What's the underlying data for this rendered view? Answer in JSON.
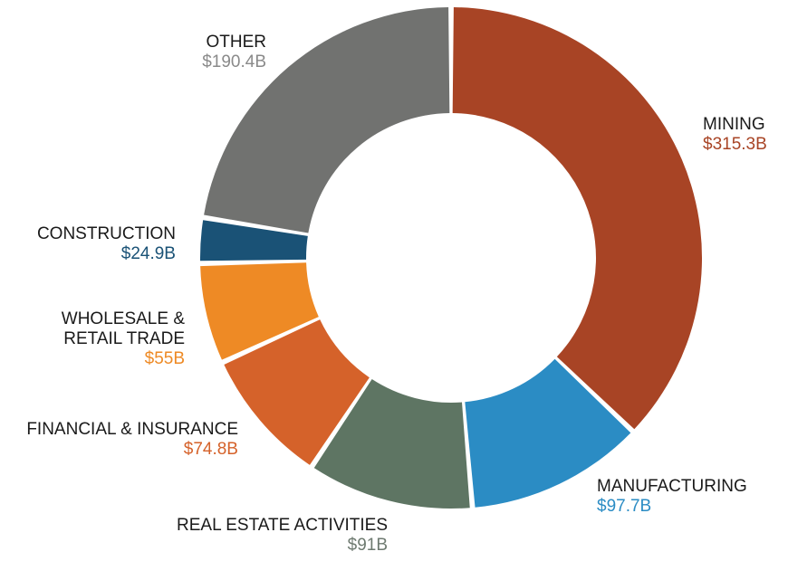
{
  "chart_data": {
    "type": "pie",
    "donut": true,
    "title": "",
    "unit": "USD billions",
    "slices": [
      {
        "key": "mining",
        "name_lines": [
          "MINING"
        ],
        "value": 315.3,
        "value_label": "$315.3B",
        "color": "#A84425",
        "label_color": "#A84425"
      },
      {
        "key": "manufacturing",
        "name_lines": [
          "MANUFACTURING"
        ],
        "value": 97.7,
        "value_label": "$97.7B",
        "color": "#2B8CC4",
        "label_color": "#2B8CC4"
      },
      {
        "key": "real-estate",
        "name_lines": [
          "REAL ESTATE ACTIVITIES"
        ],
        "value": 91,
        "value_label": "$91B",
        "color": "#5E7563",
        "label_color": "#6E7A70"
      },
      {
        "key": "financial",
        "name_lines": [
          "FINANCIAL & INSURANCE"
        ],
        "value": 74.8,
        "value_label": "$74.8B",
        "color": "#D5622A",
        "label_color": "#D5622A"
      },
      {
        "key": "wholesale",
        "name_lines": [
          "WHOLESALE &",
          "RETAIL TRADE"
        ],
        "value": 55,
        "value_label": "$55B",
        "color": "#EE8A25",
        "label_color": "#EE8A25"
      },
      {
        "key": "construction",
        "name_lines": [
          "CONSTRUCTION"
        ],
        "value": 24.9,
        "value_label": "$24.9B",
        "color": "#1A5276",
        "label_color": "#1A5276"
      },
      {
        "key": "other",
        "name_lines": [
          "OTHER"
        ],
        "value": 190.4,
        "value_label": "$190.4B",
        "color": "#717270",
        "label_color": "#8A8A8A"
      }
    ]
  }
}
